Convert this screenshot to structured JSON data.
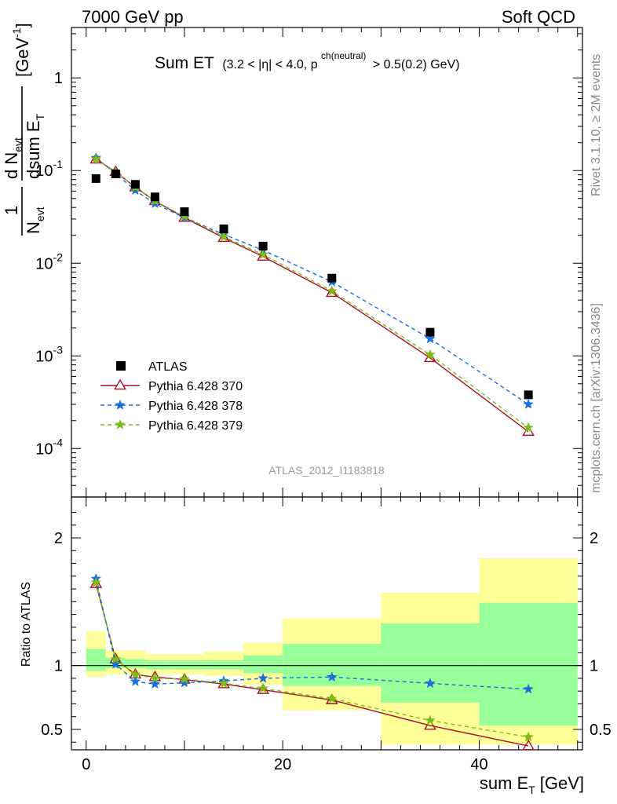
{
  "header": {
    "left": "7000 GeV pp",
    "right": "Soft QCD"
  },
  "side_labels": {
    "rivet": "Rivet 3.1.10, ≥ 2M events",
    "mcplots": "mcplots.cern.ch [arXiv:1306.3436]"
  },
  "plot_title": {
    "main": "Sum ET",
    "detail": "(3.2 < |η| < 4.0, p",
    "sup": "ch(neutral)",
    "tail": "> 0.5(0.2) GeV)"
  },
  "analysis_tag": "ATLAS_2012_I1183818",
  "y_axis_main": {
    "frac_num": "1",
    "frac_den": "N",
    "frac_den_sub": "evt",
    "d": "d N",
    "d_sub": "evt",
    "dsum": "dsum E",
    "dsum_sub": "T",
    "unit": "[GeV",
    "unit_sup": "-1",
    "unit_close": "]"
  },
  "y_axis_ratio": "Ratio to ATLAS",
  "x_axis": {
    "label": "sum E",
    "label_sub": "T",
    "unit": "[GeV]"
  },
  "legend": [
    {
      "name": "ATLAS",
      "color": "#000000",
      "marker": "square"
    },
    {
      "name": "Pythia 6.428 370",
      "color": "#a50f28",
      "marker": "open-triangle"
    },
    {
      "name": "Pythia 6.428 378",
      "color": "#1a6fdc",
      "marker": "star"
    },
    {
      "name": "Pythia 6.428 379",
      "color": "#7fba16",
      "marker": "star"
    }
  ],
  "chart_data": [
    {
      "type": "scatter",
      "panel": "main",
      "yscale": "log",
      "xlim": [
        -1.5,
        50.5
      ],
      "ylim": [
        3e-05,
        3.5
      ],
      "y_tick_labels": [
        "10^-4",
        "10^-3",
        "10^-2",
        "10^-1",
        "1"
      ],
      "x": [
        1,
        3,
        5,
        7,
        10,
        14,
        18,
        25,
        35,
        45
      ],
      "series": [
        {
          "name": "ATLAS",
          "values": [
            0.082,
            0.092,
            0.071,
            0.052,
            0.036,
            0.0235,
            0.0153,
            0.0069,
            0.0018,
            0.00038
          ]
        },
        {
          "name": "Pythia 6.428 370",
          "values": [
            0.132,
            0.097,
            0.066,
            0.047,
            0.031,
            0.0188,
            0.0118,
            0.0048,
            0.00095,
            0.000152
          ]
        },
        {
          "name": "Pythia 6.428 378",
          "values": [
            0.137,
            0.093,
            0.061,
            0.044,
            0.031,
            0.0205,
            0.0138,
            0.0063,
            0.00153,
            0.0003
          ]
        },
        {
          "name": "Pythia 6.428 379",
          "values": [
            0.133,
            0.097,
            0.066,
            0.047,
            0.032,
            0.0193,
            0.0124,
            0.005,
            0.00103,
            0.000168
          ]
        }
      ]
    },
    {
      "type": "scatter",
      "panel": "ratio",
      "xlim": [
        -1.5,
        50.5
      ],
      "ylim": [
        0.34,
        2.32
      ],
      "x_ticks": [
        0,
        20,
        40
      ],
      "y_ticks": [
        0.5,
        1,
        2
      ],
      "x": [
        1,
        3,
        5,
        7,
        10,
        14,
        18,
        25,
        35,
        45
      ],
      "uncertainty_bands": {
        "bin_edges": [
          0,
          2,
          4,
          6,
          8,
          12,
          16,
          20,
          30,
          40,
          50
        ],
        "stat_syst": [
          [
            0.91,
            1.27
          ],
          [
            0.93,
            1.12
          ],
          [
            0.93,
            1.12
          ],
          [
            0.93,
            1.09
          ],
          [
            0.93,
            1.09
          ],
          [
            0.92,
            1.11
          ],
          [
            0.85,
            1.18
          ],
          [
            0.65,
            1.37
          ],
          [
            0.38,
            1.57
          ],
          [
            0.38,
            1.84
          ]
        ],
        "stat": [
          [
            0.96,
            1.13
          ],
          [
            0.98,
            1.06
          ],
          [
            0.98,
            1.05
          ],
          [
            0.97,
            1.04
          ],
          [
            0.97,
            1.04
          ],
          [
            0.97,
            1.04
          ],
          [
            0.94,
            1.08
          ],
          [
            0.84,
            1.17
          ],
          [
            0.71,
            1.33
          ],
          [
            0.53,
            1.49
          ]
        ]
      },
      "series": [
        {
          "name": "Pythia 6.428 370",
          "values": [
            1.64,
            1.05,
            0.93,
            0.91,
            0.89,
            0.855,
            0.81,
            0.73,
            0.53,
            0.37
          ]
        },
        {
          "name": "Pythia 6.428 378",
          "values": [
            1.68,
            1.01,
            0.875,
            0.855,
            0.865,
            0.88,
            0.9,
            0.91,
            0.86,
            0.815
          ]
        },
        {
          "name": "Pythia 6.428 379",
          "values": [
            1.65,
            1.05,
            0.93,
            0.9,
            0.895,
            0.86,
            0.82,
            0.74,
            0.57,
            0.44
          ]
        }
      ]
    }
  ]
}
